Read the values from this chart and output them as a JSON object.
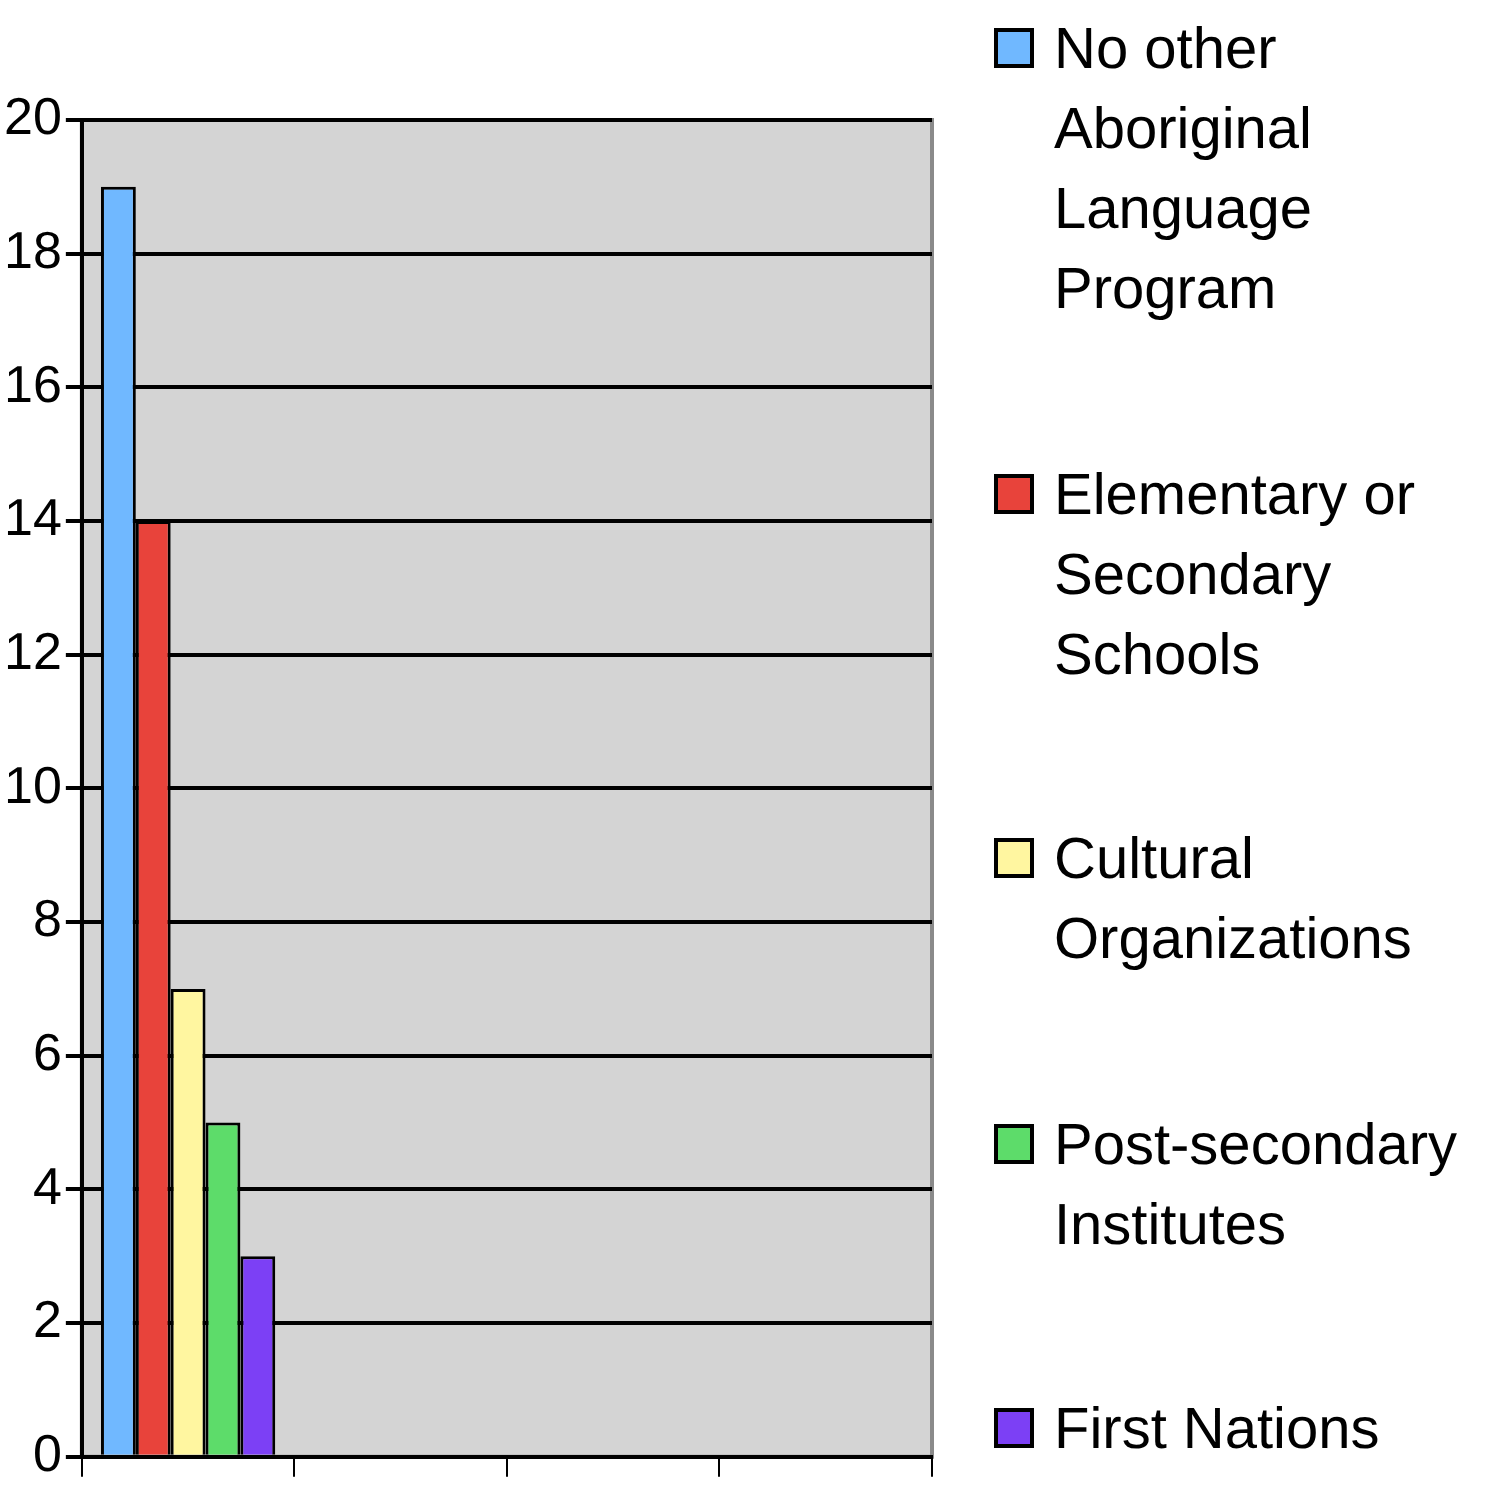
{
  "chart_data": {
    "type": "bar",
    "categories": [
      null,
      null,
      null,
      null
    ],
    "series": [
      {
        "name": "No other Aboriginal Language Program",
        "color": "#70b8ff",
        "values": [
          19,
          null,
          null,
          null
        ]
      },
      {
        "name": "Elementary or Secondary Schools",
        "color": "#e8433b",
        "values": [
          14,
          null,
          null,
          null
        ]
      },
      {
        "name": "Cultural Organizations",
        "color": "#fff6a0",
        "values": [
          7,
          null,
          null,
          null
        ]
      },
      {
        "name": "Post-secondary Institutes",
        "color": "#5ddc6a",
        "values": [
          5,
          null,
          null,
          null
        ]
      },
      {
        "name": "First Nations",
        "color": "#7c40f5",
        "values": [
          3,
          null,
          null,
          null
        ]
      }
    ],
    "ylim": [
      0,
      20
    ],
    "yticks": [
      0,
      2,
      4,
      6,
      8,
      10,
      12,
      14,
      16,
      18,
      20
    ],
    "grid": "y",
    "legend": "right"
  }
}
